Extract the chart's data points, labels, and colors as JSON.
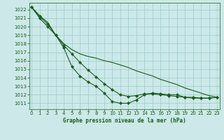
{
  "title": "Graphe pression niveau de la mer (hPa)",
  "bg_color": "#cce8e8",
  "grid_color": "#99cccc",
  "line_color": "#1a5c1a",
  "marker_color": "#1a5c1a",
  "text_color": "#1a5c1a",
  "x_ticks": [
    0,
    1,
    2,
    3,
    4,
    5,
    6,
    7,
    8,
    9,
    10,
    11,
    12,
    13,
    14,
    15,
    16,
    17,
    18,
    19,
    20,
    21,
    22,
    23
  ],
  "y_ticks": [
    1011,
    1012,
    1013,
    1014,
    1015,
    1016,
    1017,
    1018,
    1019,
    1020,
    1021,
    1022
  ],
  "ylim": [
    1010.3,
    1022.8
  ],
  "xlim": [
    -0.3,
    23.3
  ],
  "series": [
    {
      "x": [
        0,
        1,
        2,
        3,
        4,
        5,
        6,
        7,
        8,
        9,
        10,
        11,
        12,
        13,
        14,
        15,
        16,
        17,
        18,
        19,
        20,
        21,
        22,
        23
      ],
      "y": [
        1022.3,
        1021.3,
        1020.5,
        1019.0,
        1018.0,
        1017.3,
        1016.8,
        1016.5,
        1016.3,
        1016.0,
        1015.8,
        1015.5,
        1015.2,
        1014.8,
        1014.5,
        1014.2,
        1013.8,
        1013.5,
        1013.2,
        1012.8,
        1012.5,
        1012.2,
        1011.9,
        1011.7
      ],
      "has_markers": false
    },
    {
      "x": [
        0,
        1,
        2,
        3,
        4,
        5,
        6,
        7,
        8,
        9,
        10,
        11,
        12,
        13,
        14,
        15,
        16,
        17,
        18,
        19,
        20,
        21,
        22,
        23
      ],
      "y": [
        1022.3,
        1021.2,
        1020.3,
        1019.0,
        1017.8,
        1016.8,
        1015.8,
        1014.9,
        1014.1,
        1013.3,
        1012.6,
        1012.0,
        1011.8,
        1011.9,
        1012.1,
        1012.1,
        1012.0,
        1011.9,
        1011.8,
        1011.7,
        1011.6,
        1011.6,
        1011.6,
        1011.7
      ],
      "has_markers": true
    },
    {
      "x": [
        0,
        1,
        2,
        3,
        4,
        5,
        6,
        7,
        8,
        9,
        10,
        11,
        12,
        13,
        14,
        15,
        16,
        17,
        18,
        19,
        20,
        21,
        22,
        23
      ],
      "y": [
        1022.3,
        1021.0,
        1020.0,
        1019.0,
        1017.5,
        1015.3,
        1014.2,
        1013.5,
        1013.0,
        1012.2,
        1011.2,
        1011.0,
        1011.0,
        1011.4,
        1012.0,
        1012.2,
        1012.1,
        1012.0,
        1012.0,
        1011.7,
        1011.7,
        1011.6,
        1011.6,
        1011.7
      ],
      "has_markers": true
    }
  ]
}
